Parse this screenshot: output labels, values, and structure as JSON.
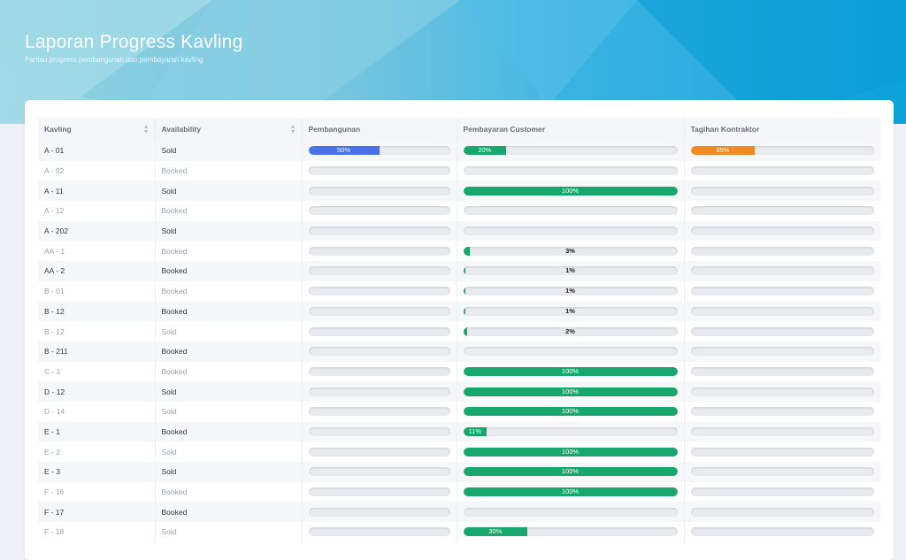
{
  "header": {
    "title": "Laporan Progress Kavling",
    "subtitle": "Pantau progress pembangunan dan pembayaran kavling"
  },
  "colors": {
    "pembangunan": "#4a72e8",
    "pembayaran": "#17a66b",
    "tagihan": "#f08a24"
  },
  "table": {
    "columns": [
      {
        "label": "Kavling",
        "sortable": true
      },
      {
        "label": "Availability",
        "sortable": true
      },
      {
        "label": "Pembangunan",
        "sortable": false
      },
      {
        "label": "Pembayaran Customer",
        "sortable": false
      },
      {
        "label": "Tagihan Kontraktor",
        "sortable": false
      }
    ],
    "rows": [
      {
        "kavling": "A - 01",
        "availability": "Sold",
        "pembangunan": 50,
        "pembayaran": 20,
        "tagihan": 35
      },
      {
        "kavling": "A - 02",
        "availability": "Booked",
        "pembangunan": 0,
        "pembayaran": 0,
        "tagihan": 0
      },
      {
        "kavling": "A - 11",
        "availability": "Sold",
        "pembangunan": 0,
        "pembayaran": 100,
        "tagihan": 0
      },
      {
        "kavling": "A - 12",
        "availability": "Booked",
        "pembangunan": 0,
        "pembayaran": 0,
        "tagihan": 0
      },
      {
        "kavling": "A - 202",
        "availability": "Sold",
        "pembangunan": 0,
        "pembayaran": 0,
        "tagihan": 0
      },
      {
        "kavling": "AA - 1",
        "availability": "Booked",
        "pembangunan": 0,
        "pembayaran": 3,
        "tagihan": 0
      },
      {
        "kavling": "AA - 2",
        "availability": "Booked",
        "pembangunan": 0,
        "pembayaran": 1,
        "tagihan": 0
      },
      {
        "kavling": "B - 01",
        "availability": "Booked",
        "pembangunan": 0,
        "pembayaran": 1,
        "tagihan": 0
      },
      {
        "kavling": "B - 12",
        "availability": "Booked",
        "pembangunan": 0,
        "pembayaran": 1,
        "tagihan": 0
      },
      {
        "kavling": "B - 12",
        "availability": "Sold",
        "pembangunan": 0,
        "pembayaran": 2,
        "tagihan": 0
      },
      {
        "kavling": "B - 211",
        "availability": "Booked",
        "pembangunan": 0,
        "pembayaran": 0,
        "tagihan": 0
      },
      {
        "kavling": "C - 1",
        "availability": "Booked",
        "pembangunan": 0,
        "pembayaran": 100,
        "tagihan": 0
      },
      {
        "kavling": "D - 12",
        "availability": "Sold",
        "pembangunan": 0,
        "pembayaran": 100,
        "tagihan": 0
      },
      {
        "kavling": "D - 14",
        "availability": "Sold",
        "pembangunan": 0,
        "pembayaran": 100,
        "tagihan": 0
      },
      {
        "kavling": "E - 1",
        "availability": "Booked",
        "pembangunan": 0,
        "pembayaran": 11,
        "tagihan": 0
      },
      {
        "kavling": "E - 2",
        "availability": "Sold",
        "pembangunan": 0,
        "pembayaran": 100,
        "tagihan": 0
      },
      {
        "kavling": "E - 3",
        "availability": "Sold",
        "pembangunan": 0,
        "pembayaran": 100,
        "tagihan": 0
      },
      {
        "kavling": "F - 16",
        "availability": "Booked",
        "pembangunan": 0,
        "pembayaran": 100,
        "tagihan": 0
      },
      {
        "kavling": "F - 17",
        "availability": "Booked",
        "pembangunan": 0,
        "pembayaran": 0,
        "tagihan": 0
      },
      {
        "kavling": "F - 18",
        "availability": "Sold",
        "pembangunan": 0,
        "pembayaran": 30,
        "tagihan": 0
      }
    ]
  }
}
